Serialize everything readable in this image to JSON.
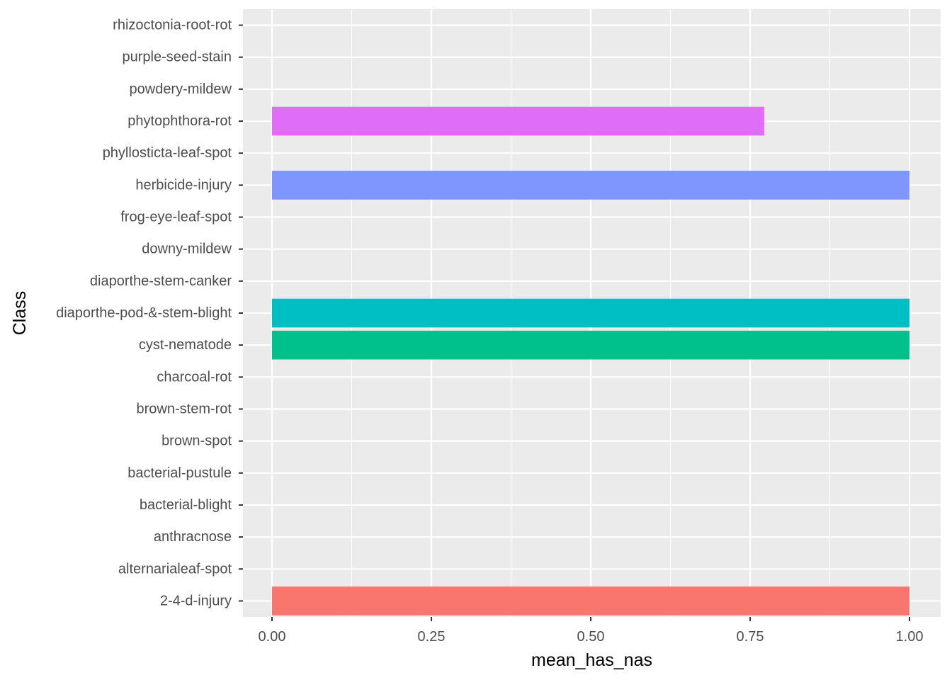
{
  "chart_data": {
    "type": "bar",
    "orientation": "horizontal",
    "xlabel": "mean_has_nas",
    "ylabel": "Class",
    "xlim": [
      0,
      1
    ],
    "x_ticks": [
      "0.00",
      "0.25",
      "0.50",
      "0.75",
      "1.00"
    ],
    "x_tick_values": [
      0,
      0.25,
      0.5,
      0.75,
      1.0
    ],
    "grid": true,
    "legend": "none",
    "panel_background": "#EBEBEB",
    "grid_color": "#FFFFFF",
    "categories": [
      "2-4-d-injury",
      "alternarialeaf-spot",
      "anthracnose",
      "bacterial-blight",
      "bacterial-pustule",
      "brown-spot",
      "brown-stem-rot",
      "charcoal-rot",
      "cyst-nematode",
      "diaporthe-pod-&-stem-blight",
      "diaporthe-stem-canker",
      "downy-mildew",
      "frog-eye-leaf-spot",
      "herbicide-injury",
      "phyllosticta-leaf-spot",
      "phytophthora-rot",
      "powdery-mildew",
      "purple-seed-stain",
      "rhizoctonia-root-rot"
    ],
    "values": [
      1.0,
      0,
      0,
      0,
      0,
      0,
      0,
      0,
      1.0,
      1.0,
      0,
      0,
      0,
      1.0,
      0,
      0.772,
      0,
      0,
      0
    ],
    "colors": [
      "#F8766D",
      "#ED813E",
      "#DE8C00",
      "#CD9600",
      "#B79F00",
      "#9DA700",
      "#7CAE00",
      "#49B500",
      "#00BA38",
      "#00C08B",
      "#00C1AA",
      "#00BFC4",
      "#00BBDC",
      "#00B4F0",
      "#00A9FF",
      "#619CFF",
      "#9F8CFF",
      "#C77CFF",
      "#E76BF3"
    ],
    "bar_colors": [
      "#F8766D",
      "#ED813E",
      "#DE8C00",
      "#CD9600",
      "#B79F00",
      "#9DA700",
      "#7CAE00",
      "#49B500",
      "#00C08B",
      "#00BFC4",
      "#00C1AA",
      "#00BFC4",
      "#00BBDC",
      "#7F96FF",
      "#00A9FF",
      "#E06DF8",
      "#9F8CFF",
      "#C77CFF",
      "#E76BF3"
    ]
  }
}
